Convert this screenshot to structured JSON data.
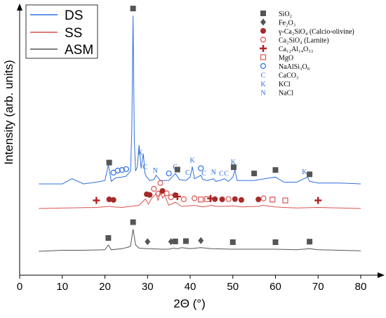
{
  "chart_data": {
    "type": "line",
    "xlabel": "2Θ (°)",
    "ylabel": "Intensity (arb. units)",
    "xlim": [
      0,
      80
    ],
    "xticks": [
      0,
      10,
      20,
      30,
      40,
      50,
      60,
      70,
      80
    ],
    "grid": false,
    "legend_position": "top-left",
    "series": [
      {
        "name": "DS",
        "color": "#2f6fe0",
        "x": [
          4.5,
          10,
          12.3,
          15,
          18,
          20,
          20.8,
          21.5,
          22.5,
          24,
          25,
          26,
          26.3,
          26.6,
          26.9,
          27.2,
          27.6,
          28,
          28.5,
          29,
          29.4,
          29.8,
          30.5,
          31.5,
          32,
          33,
          35,
          36.5,
          37.5,
          39,
          40,
          40.5,
          41,
          42.5,
          43,
          44,
          45.5,
          46,
          47,
          48,
          49,
          50,
          50.5,
          51,
          55,
          60,
          62,
          65,
          67.5,
          68,
          70,
          75,
          80
        ],
        "y": [
          0.0,
          0.0,
          0.06,
          0.0,
          0.02,
          0.04,
          0.22,
          0.03,
          0.07,
          0.08,
          0.09,
          0.15,
          0.6,
          1.95,
          0.5,
          0.15,
          0.2,
          0.45,
          0.18,
          0.35,
          0.12,
          0.08,
          0.04,
          0.05,
          0.1,
          0.04,
          0.04,
          0.12,
          0.05,
          0.04,
          0.08,
          0.2,
          0.06,
          0.1,
          0.05,
          0.04,
          0.06,
          0.03,
          0.04,
          0.06,
          0.03,
          0.08,
          0.16,
          0.04,
          0.04,
          0.08,
          0.02,
          0.02,
          0.08,
          0.03,
          0.01,
          0.01,
          0.0
        ]
      },
      {
        "name": "SS",
        "color": "#d9534f",
        "x": [
          4.5,
          18,
          21,
          22,
          24,
          28,
          29.5,
          30.2,
          31,
          32,
          32.5,
          33,
          33.5,
          34,
          35,
          36.5,
          38,
          41,
          43,
          45,
          46,
          47.5,
          50,
          51,
          52,
          56,
          57,
          60,
          62,
          65,
          70,
          75,
          80
        ],
        "y": [
          0.0,
          0.02,
          0.04,
          0.03,
          0.02,
          0.06,
          0.18,
          0.08,
          0.2,
          0.28,
          0.15,
          0.35,
          0.2,
          0.25,
          0.06,
          0.12,
          0.04,
          0.06,
          0.03,
          0.06,
          0.04,
          0.04,
          0.05,
          0.04,
          0.03,
          0.04,
          0.06,
          0.03,
          0.02,
          0.01,
          0.02,
          0.01,
          0.0
        ]
      },
      {
        "name": "ASM",
        "color": "#555555",
        "x": [
          4.5,
          10,
          15,
          20,
          20.8,
          21.5,
          24,
          25.5,
          26,
          26.6,
          27.2,
          28,
          30,
          33.5,
          35,
          36,
          37,
          38,
          39,
          40,
          42.5,
          45,
          50,
          55,
          60,
          65,
          68,
          70,
          75,
          80
        ],
        "y": [
          0.0,
          0.02,
          0.02,
          0.03,
          0.12,
          0.03,
          0.05,
          0.08,
          0.1,
          0.42,
          0.12,
          0.06,
          0.05,
          0.04,
          0.04,
          0.06,
          0.05,
          0.07,
          0.06,
          0.05,
          0.07,
          0.05,
          0.04,
          0.04,
          0.04,
          0.03,
          0.05,
          0.03,
          0.02,
          0.01
        ]
      }
    ],
    "phase_legend": [
      {
        "symbol": "filled-square",
        "color": "#555555",
        "label": "SiO₂"
      },
      {
        "symbol": "filled-diamond",
        "color": "#555555",
        "label": "Fe₂O₃"
      },
      {
        "symbol": "filled-circle",
        "color": "#a52a2a",
        "label": "γ-Ca₂SiO₄ (Calcio-olivine)"
      },
      {
        "symbol": "open-circle",
        "color": "#d9534f",
        "label": "Ca₂SiO₄ (Larnite)"
      },
      {
        "symbol": "plus",
        "color": "#b22222",
        "label": "Ca₁₂Al₁₄O₃₃"
      },
      {
        "symbol": "open-square",
        "color": "#d9534f",
        "label": "MgO"
      },
      {
        "symbol": "open-circle-blue",
        "color": "#2f6fe0",
        "label": "NaAlSi₃O₈"
      },
      {
        "symbol": "letter",
        "letter": "C",
        "color": "#2f6fe0",
        "label": "CaCO₃"
      },
      {
        "symbol": "letter",
        "letter": "K",
        "color": "#2f6fe0",
        "label": "KCl"
      },
      {
        "symbol": "letter",
        "letter": "N",
        "color": "#2f6fe0",
        "label": "NaCl"
      }
    ],
    "markers": {
      "DS": [
        {
          "x": 26.6,
          "symbol": "filled-square"
        },
        {
          "x": 21,
          "symbol": "filled-square"
        },
        {
          "x": 50.2,
          "symbol": "filled-square"
        },
        {
          "x": 55,
          "symbol": "filled-square"
        },
        {
          "x": 60,
          "symbol": "filled-square"
        },
        {
          "x": 68,
          "symbol": "filled-square"
        },
        {
          "x": 37,
          "symbol": "filled-square"
        },
        {
          "x": 22,
          "symbol": "open-circle-blue"
        },
        {
          "x": 23,
          "symbol": "open-circle-blue"
        },
        {
          "x": 24,
          "symbol": "open-circle-blue"
        },
        {
          "x": 25,
          "symbol": "open-circle-blue"
        },
        {
          "x": 35,
          "symbol": "open-circle-blue"
        },
        {
          "x": 42.5,
          "symbol": "open-circle-blue"
        },
        {
          "x": 28.3,
          "symbol": "letter",
          "letter": "K"
        },
        {
          "x": 29.4,
          "symbol": "letter",
          "letter": "C"
        },
        {
          "x": 31.8,
          "symbol": "letter",
          "letter": "N"
        },
        {
          "x": 36.5,
          "symbol": "letter",
          "letter": "C"
        },
        {
          "x": 39.4,
          "symbol": "letter",
          "letter": "C"
        },
        {
          "x": 40.5,
          "symbol": "letter",
          "letter": "K"
        },
        {
          "x": 43.2,
          "symbol": "letter",
          "letter": "C"
        },
        {
          "x": 45.5,
          "symbol": "letter",
          "letter": "N"
        },
        {
          "x": 47.3,
          "symbol": "letter",
          "letter": "C"
        },
        {
          "x": 48.5,
          "symbol": "letter",
          "letter": "C"
        },
        {
          "x": 50.1,
          "symbol": "letter",
          "letter": "K"
        },
        {
          "x": 66.8,
          "symbol": "letter",
          "letter": "K"
        }
      ],
      "SS": [
        {
          "x": 18,
          "symbol": "plus"
        },
        {
          "x": 21,
          "symbol": "filled-circle"
        },
        {
          "x": 22,
          "symbol": "filled-circle"
        },
        {
          "x": 29.8,
          "symbol": "filled-circle"
        },
        {
          "x": 30.5,
          "symbol": "filled-circle"
        },
        {
          "x": 31.5,
          "symbol": "open-circle"
        },
        {
          "x": 32.5,
          "symbol": "open-circle"
        },
        {
          "x": 33,
          "symbol": "open-circle"
        },
        {
          "x": 33.5,
          "symbol": "filled-circle"
        },
        {
          "x": 34.5,
          "symbol": "open-circle"
        },
        {
          "x": 35.5,
          "symbol": "open-circle"
        },
        {
          "x": 36.5,
          "symbol": "filled-circle"
        },
        {
          "x": 37,
          "symbol": "plus"
        },
        {
          "x": 38.5,
          "symbol": "open-circle"
        },
        {
          "x": 41,
          "symbol": "open-circle"
        },
        {
          "x": 42.5,
          "symbol": "open-square"
        },
        {
          "x": 44,
          "symbol": "open-square"
        },
        {
          "x": 44.8,
          "symbol": "plus"
        },
        {
          "x": 45.8,
          "symbol": "filled-circle"
        },
        {
          "x": 47.5,
          "symbol": "filled-circle"
        },
        {
          "x": 49,
          "symbol": "open-circle"
        },
        {
          "x": 50.5,
          "symbol": "filled-circle"
        },
        {
          "x": 52,
          "symbol": "filled-circle"
        },
        {
          "x": 56,
          "symbol": "filled-circle"
        },
        {
          "x": 57.2,
          "symbol": "open-circle"
        },
        {
          "x": 59.3,
          "symbol": "open-square"
        },
        {
          "x": 62.3,
          "symbol": "open-square"
        },
        {
          "x": 70,
          "symbol": "plus"
        }
      ],
      "ASM": [
        {
          "x": 20.8,
          "symbol": "filled-square"
        },
        {
          "x": 26.6,
          "symbol": "filled-square"
        },
        {
          "x": 30,
          "symbol": "filled-diamond"
        },
        {
          "x": 35.5,
          "symbol": "filled-diamond"
        },
        {
          "x": 36.5,
          "symbol": "filled-square"
        },
        {
          "x": 39,
          "symbol": "filled-square"
        },
        {
          "x": 42.5,
          "symbol": "filled-diamond"
        },
        {
          "x": 50,
          "symbol": "filled-square"
        },
        {
          "x": 60,
          "symbol": "filled-square"
        },
        {
          "x": 68,
          "symbol": "filled-square"
        }
      ]
    }
  }
}
